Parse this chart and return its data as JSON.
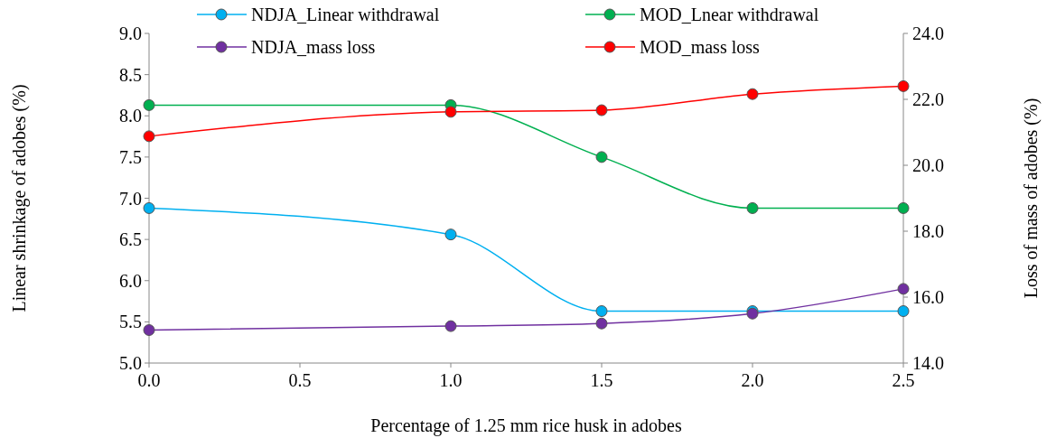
{
  "chart_data": {
    "type": "line",
    "xlabel": "Percentage of 1.25 mm rice husk in adobes",
    "ylabel": "Linear shrinkage of adobes (%)",
    "y2label": "Loss of mass of adobes (%)",
    "x": [
      0,
      1,
      1.5,
      2,
      2.5
    ],
    "xlim": [
      0,
      2.5
    ],
    "xticks": [
      {
        "value": 0,
        "label": "0.0"
      },
      {
        "value": 0.5,
        "label": "0.5"
      },
      {
        "value": 1,
        "label": "1.0"
      },
      {
        "value": 1.5,
        "label": "1.5"
      },
      {
        "value": 2,
        "label": "2.0"
      },
      {
        "value": 2.5,
        "label": "2.5"
      }
    ],
    "ylim": [
      5,
      9
    ],
    "yticks": [
      {
        "value": 5,
        "label": "5.0"
      },
      {
        "value": 5.5,
        "label": "5.5"
      },
      {
        "value": 6,
        "label": "6.0"
      },
      {
        "value": 6.5,
        "label": "6.5"
      },
      {
        "value": 7,
        "label": "7.0"
      },
      {
        "value": 7.5,
        "label": "7.5"
      },
      {
        "value": 8,
        "label": "8.0"
      },
      {
        "value": 8.5,
        "label": "8.5"
      },
      {
        "value": 9,
        "label": "9.0"
      }
    ],
    "y2lim": [
      14,
      24
    ],
    "y2ticks": [
      {
        "value": 14,
        "label": "14.0"
      },
      {
        "value": 16,
        "label": "16.0"
      },
      {
        "value": 18,
        "label": "18.0"
      },
      {
        "value": 20,
        "label": "20.0"
      },
      {
        "value": 22,
        "label": "22.0"
      },
      {
        "value": 24,
        "label": "24.0"
      }
    ],
    "series": [
      {
        "name": "NDJA_Linear withdrawal",
        "color": "#00b0f0",
        "values": [
          6.88,
          6.56,
          5.63,
          5.63,
          5.63
        ]
      },
      {
        "name": "MOD_Lnear withdrawal",
        "color": "#00b050",
        "values": [
          8.13,
          8.13,
          7.5,
          6.88,
          6.88
        ]
      },
      {
        "name": "NDJA_mass loss",
        "color": "#7030a0",
        "axis": "y2",
        "values": [
          15.0,
          15.12,
          15.2,
          15.5,
          16.25
        ]
      },
      {
        "name": "MOD_mass loss",
        "color": "#ff0000",
        "axis": "y2",
        "values": [
          20.88,
          21.62,
          21.67,
          22.16,
          22.4
        ]
      }
    ],
    "marker": "circle",
    "legend": "top",
    "grid": false
  }
}
